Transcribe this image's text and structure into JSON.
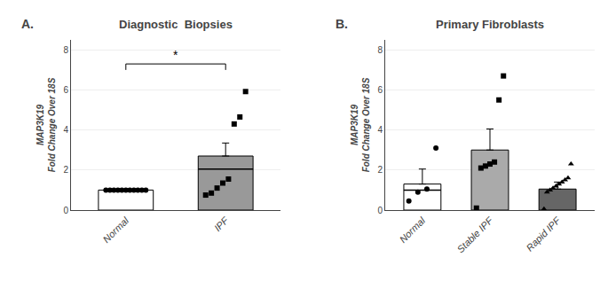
{
  "chart_data": [
    {
      "type": "bar",
      "panel_label": "A.",
      "title": "Diagnostic  Biopsies",
      "ylabel": "MAP3K19\nFold Change Over 18S",
      "categories": [
        "Normal",
        "IPF"
      ],
      "values": [
        1.0,
        2.7
      ],
      "colors": [
        "#ffffff",
        "#999999"
      ],
      "edgecolors": [
        "#000000",
        "#000000"
      ],
      "error_top": [
        0.05,
        0.65
      ],
      "medians": [
        null,
        2.05
      ],
      "points": [
        {
          "category": "Normal",
          "marker": "circle",
          "color": "#000000",
          "values": [
            1.0,
            1.0,
            1.0,
            1.0,
            1.0,
            1.0,
            1.0,
            1.0,
            1.0,
            1.0,
            1.0
          ]
        },
        {
          "category": "IPF",
          "marker": "square",
          "color": "#000000",
          "values": [
            0.75,
            0.85,
            1.1,
            1.35,
            1.55,
            4.3,
            4.65,
            5.92
          ]
        }
      ],
      "annotations": [
        {
          "text": "*",
          "from": "Normal",
          "to": "IPF",
          "y": 7.3
        }
      ],
      "ylim": [
        0,
        8.5
      ],
      "yticks": [
        0,
        2,
        4,
        6,
        8
      ]
    },
    {
      "type": "bar",
      "panel_label": "B.",
      "title": "Primary Fibroblasts",
      "ylabel": "MAP3K19\nFold Change Over 18S",
      "categories": [
        "Normal",
        "Stable IPF",
        "Rapid IPF"
      ],
      "values": [
        1.3,
        3.0,
        1.05
      ],
      "colors": [
        "#ffffff",
        "#aaaaaa",
        "#666666"
      ],
      "edgecolors": [
        "#000000",
        "#000000",
        "#000000"
      ],
      "error_top": [
        0.75,
        1.05,
        0.35
      ],
      "medians": [
        1.0,
        null,
        null
      ],
      "points": [
        {
          "category": "Normal",
          "marker": "circle",
          "color": "#000000",
          "values": [
            0.45,
            0.9,
            1.05,
            3.1
          ]
        },
        {
          "category": "Stable IPF",
          "marker": "square",
          "color": "#000000",
          "values": [
            0.1,
            2.1,
            2.2,
            2.3,
            2.4,
            5.5,
            6.7
          ]
        },
        {
          "category": "Rapid IPF",
          "marker": "triangle-up",
          "color": "#000000",
          "values": [
            0.05,
            0.9,
            1.0,
            1.1,
            1.2,
            1.3,
            1.4,
            1.5,
            1.6,
            2.3
          ]
        }
      ],
      "ylim": [
        0,
        8.5
      ],
      "yticks": [
        0,
        2,
        4,
        6,
        8
      ]
    }
  ]
}
